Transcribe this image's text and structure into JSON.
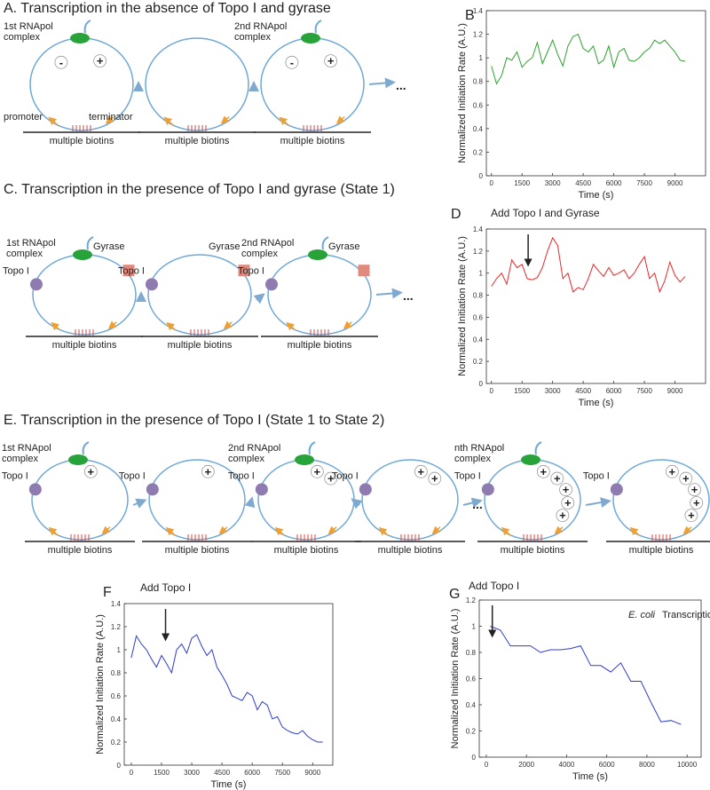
{
  "panels": [
    {
      "title": "A. Transcription in the absence of Topo I and gyrase",
      "diagrams": [
        {
          "rnapol": [
            "1st RNApol",
            "complex"
          ],
          "charges": [
            "-",
            "+"
          ],
          "promoter": "promoter",
          "terminator": "terminator",
          "biotins": "multiple biotins"
        },
        {
          "biotins": "multiple biotins"
        },
        {
          "rnapol": [
            "2nd RNApol",
            "complex"
          ],
          "charges": [
            "-",
            "+"
          ],
          "biotins": "multiple biotins"
        }
      ],
      "ellipsis": "..."
    },
    {
      "title": "C. Transcription in the presence of Topo I and gyrase (State 1)",
      "diagrams": [
        {
          "rnapol": [
            "1st RNApol",
            "complex"
          ],
          "topo": "Topo I",
          "gyrase": "Gyrase",
          "biotins": "multiple biotins"
        },
        {
          "topo": "Topo I",
          "gyrase": "Gyrase",
          "biotins": "multiple biotins"
        },
        {
          "rnapol": [
            "2nd RNApol",
            "complex"
          ],
          "topo": "Topo I",
          "gyrase": "Gyrase",
          "biotins": "multiple biotins"
        }
      ],
      "ellipsis": "..."
    },
    {
      "title": "E. Transcription in the presence of Topo I (State 1 to State 2)",
      "diagrams": [
        {
          "rnapol": [
            "1st RNApol",
            "complex"
          ],
          "topo": "Topo I",
          "charges": [
            "+"
          ],
          "biotins": "multiple biotins"
        },
        {
          "topo": "Topo I",
          "charges": [
            "+"
          ],
          "biotins": "multiple biotins"
        },
        {
          "rnapol": [
            "2nd RNApol",
            "complex"
          ],
          "topo": "Topo I",
          "charges": [
            "+",
            "+"
          ],
          "biotins": "multiple biotins"
        },
        {
          "topo": "Topo I",
          "charges": [
            "+",
            "+"
          ],
          "biotins": "multiple biotins"
        },
        {
          "rnapol": [
            "nth RNApol",
            "complex"
          ],
          "topo": "Topo I",
          "charges": [
            "+",
            "+",
            "+",
            "+",
            "+"
          ],
          "biotins": "multiple biotins"
        },
        {
          "topo": "Topo I",
          "charges": [
            "+",
            "+",
            "+",
            "+",
            "+"
          ],
          "biotins": "multiple biotins"
        }
      ],
      "ellipsis": "..."
    }
  ],
  "chart_data": [
    {
      "type": "line",
      "panel_label": "B",
      "x_label": "Time (s)",
      "y_label": "Normalized Initiation Rate (A.U.)",
      "color": "#2ca02c",
      "x": [
        0,
        250,
        500,
        750,
        1000,
        1250,
        1500,
        1750,
        2000,
        2250,
        2500,
        2750,
        3000,
        3250,
        3500,
        3750,
        4000,
        4250,
        4500,
        4750,
        5000,
        5250,
        5500,
        5750,
        6000,
        6250,
        6500,
        6750,
        7000,
        7250,
        7500,
        7750,
        8000,
        8250,
        8500,
        8750,
        9000,
        9250,
        9500
      ],
      "values": [
        0.93,
        0.78,
        0.85,
        1.0,
        0.98,
        1.05,
        0.92,
        0.97,
        1.0,
        1.13,
        0.95,
        1.05,
        1.15,
        1.03,
        0.93,
        1.1,
        1.18,
        1.2,
        1.08,
        1.05,
        1.1,
        0.95,
        0.98,
        1.1,
        0.92,
        1.05,
        1.08,
        0.98,
        0.97,
        1.0,
        1.05,
        1.08,
        1.15,
        1.12,
        1.15,
        1.1,
        1.05,
        0.98,
        0.97
      ],
      "xlim": [
        -250,
        10500
      ],
      "xticks": [
        0,
        1500,
        3000,
        4500,
        6000,
        7500,
        9000
      ],
      "ylim": [
        0,
        1.4
      ],
      "yticks": [
        0,
        0.2,
        0.4,
        0.6,
        0.8,
        1,
        1.2,
        1.4
      ]
    },
    {
      "type": "line",
      "panel_label": "D",
      "title": "Add Topo I and Gyrase",
      "arrow_x": 1800,
      "x_label": "Time (s)",
      "y_label": "Normalized Initiation Rate (A.U.)",
      "color": "#e8272a",
      "x": [
        0,
        250,
        500,
        750,
        1000,
        1250,
        1500,
        1750,
        2000,
        2250,
        2500,
        2750,
        3000,
        3250,
        3500,
        3750,
        4000,
        4250,
        4500,
        4750,
        5000,
        5250,
        5500,
        5750,
        6000,
        6250,
        6500,
        6750,
        7000,
        7250,
        7500,
        7750,
        8000,
        8250,
        8500,
        8750,
        9000,
        9250,
        9500
      ],
      "values": [
        0.88,
        0.95,
        1.0,
        0.9,
        1.12,
        1.05,
        1.08,
        0.95,
        0.94,
        0.96,
        1.05,
        1.2,
        1.32,
        1.25,
        0.95,
        1.0,
        0.83,
        0.87,
        0.85,
        0.95,
        1.08,
        1.02,
        0.97,
        1.05,
        0.98,
        1.0,
        1.03,
        0.95,
        1.0,
        1.08,
        1.15,
        0.95,
        1.0,
        0.83,
        0.93,
        1.1,
        0.98,
        0.92,
        0.97
      ],
      "xlim": [
        -250,
        10500
      ],
      "xticks": [
        0,
        1500,
        3000,
        4500,
        6000,
        7500,
        9000
      ],
      "ylim": [
        0,
        1.4
      ],
      "yticks": [
        0,
        0.2,
        0.4,
        0.6,
        0.8,
        1,
        1.2,
        1.4
      ]
    },
    {
      "type": "line",
      "panel_label": "F",
      "title": "Add Topo I",
      "arrow_x": 1700,
      "x_label": "Time (s)",
      "y_label": "Normalized Initiation Rate (A.U.)",
      "color": "#2f3bcf",
      "x": [
        0,
        250,
        500,
        750,
        1000,
        1250,
        1500,
        1750,
        2000,
        2250,
        2500,
        2750,
        3000,
        3250,
        3500,
        3750,
        4000,
        4250,
        4500,
        4750,
        5000,
        5250,
        5500,
        5750,
        6000,
        6250,
        6500,
        6750,
        7000,
        7250,
        7500,
        7750,
        8000,
        8250,
        8500,
        8750,
        9000,
        9250,
        9500
      ],
      "values": [
        0.93,
        1.12,
        1.05,
        1.0,
        0.92,
        0.85,
        0.95,
        0.88,
        0.8,
        1.0,
        1.05,
        0.97,
        1.1,
        1.13,
        1.03,
        0.95,
        1.0,
        0.85,
        0.78,
        0.7,
        0.6,
        0.58,
        0.56,
        0.63,
        0.6,
        0.48,
        0.55,
        0.52,
        0.4,
        0.42,
        0.33,
        0.3,
        0.28,
        0.27,
        0.3,
        0.25,
        0.22,
        0.2,
        0.2
      ],
      "xlim": [
        -350,
        10000
      ],
      "xticks": [
        0,
        1500,
        3000,
        4500,
        6000,
        7500,
        9000
      ],
      "ylim": [
        0,
        1.4
      ],
      "yticks": [
        0,
        0.2,
        0.4,
        0.6,
        0.8,
        1,
        1.2,
        1.4
      ]
    },
    {
      "type": "line",
      "panel_label": "G",
      "title": "Add Topo I",
      "arrow_x": 300,
      "annotation": {
        "italic": "E. coli",
        "text": "Transcription"
      },
      "x_label": "Time (s)",
      "y_label": "Normalized Initiation Rate (A.U.)",
      "color": "#2f3bcf",
      "x": [
        200,
        700,
        1200,
        1700,
        2200,
        2700,
        3200,
        3700,
        4200,
        4700,
        5200,
        5700,
        6200,
        6700,
        7200,
        7700,
        8200,
        8700,
        9200,
        9700
      ],
      "values": [
        1.0,
        0.97,
        0.85,
        0.85,
        0.85,
        0.8,
        0.82,
        0.82,
        0.83,
        0.85,
        0.7,
        0.7,
        0.65,
        0.72,
        0.58,
        0.58,
        0.42,
        0.27,
        0.28,
        0.25
      ],
      "xlim": [
        -350,
        10700
      ],
      "xticks": [
        0,
        2000,
        4000,
        6000,
        8000,
        10000
      ],
      "ylim": [
        0,
        1.2
      ],
      "yticks": [
        0,
        0.2,
        0.4,
        0.6,
        0.8,
        1,
        1.2
      ]
    }
  ]
}
